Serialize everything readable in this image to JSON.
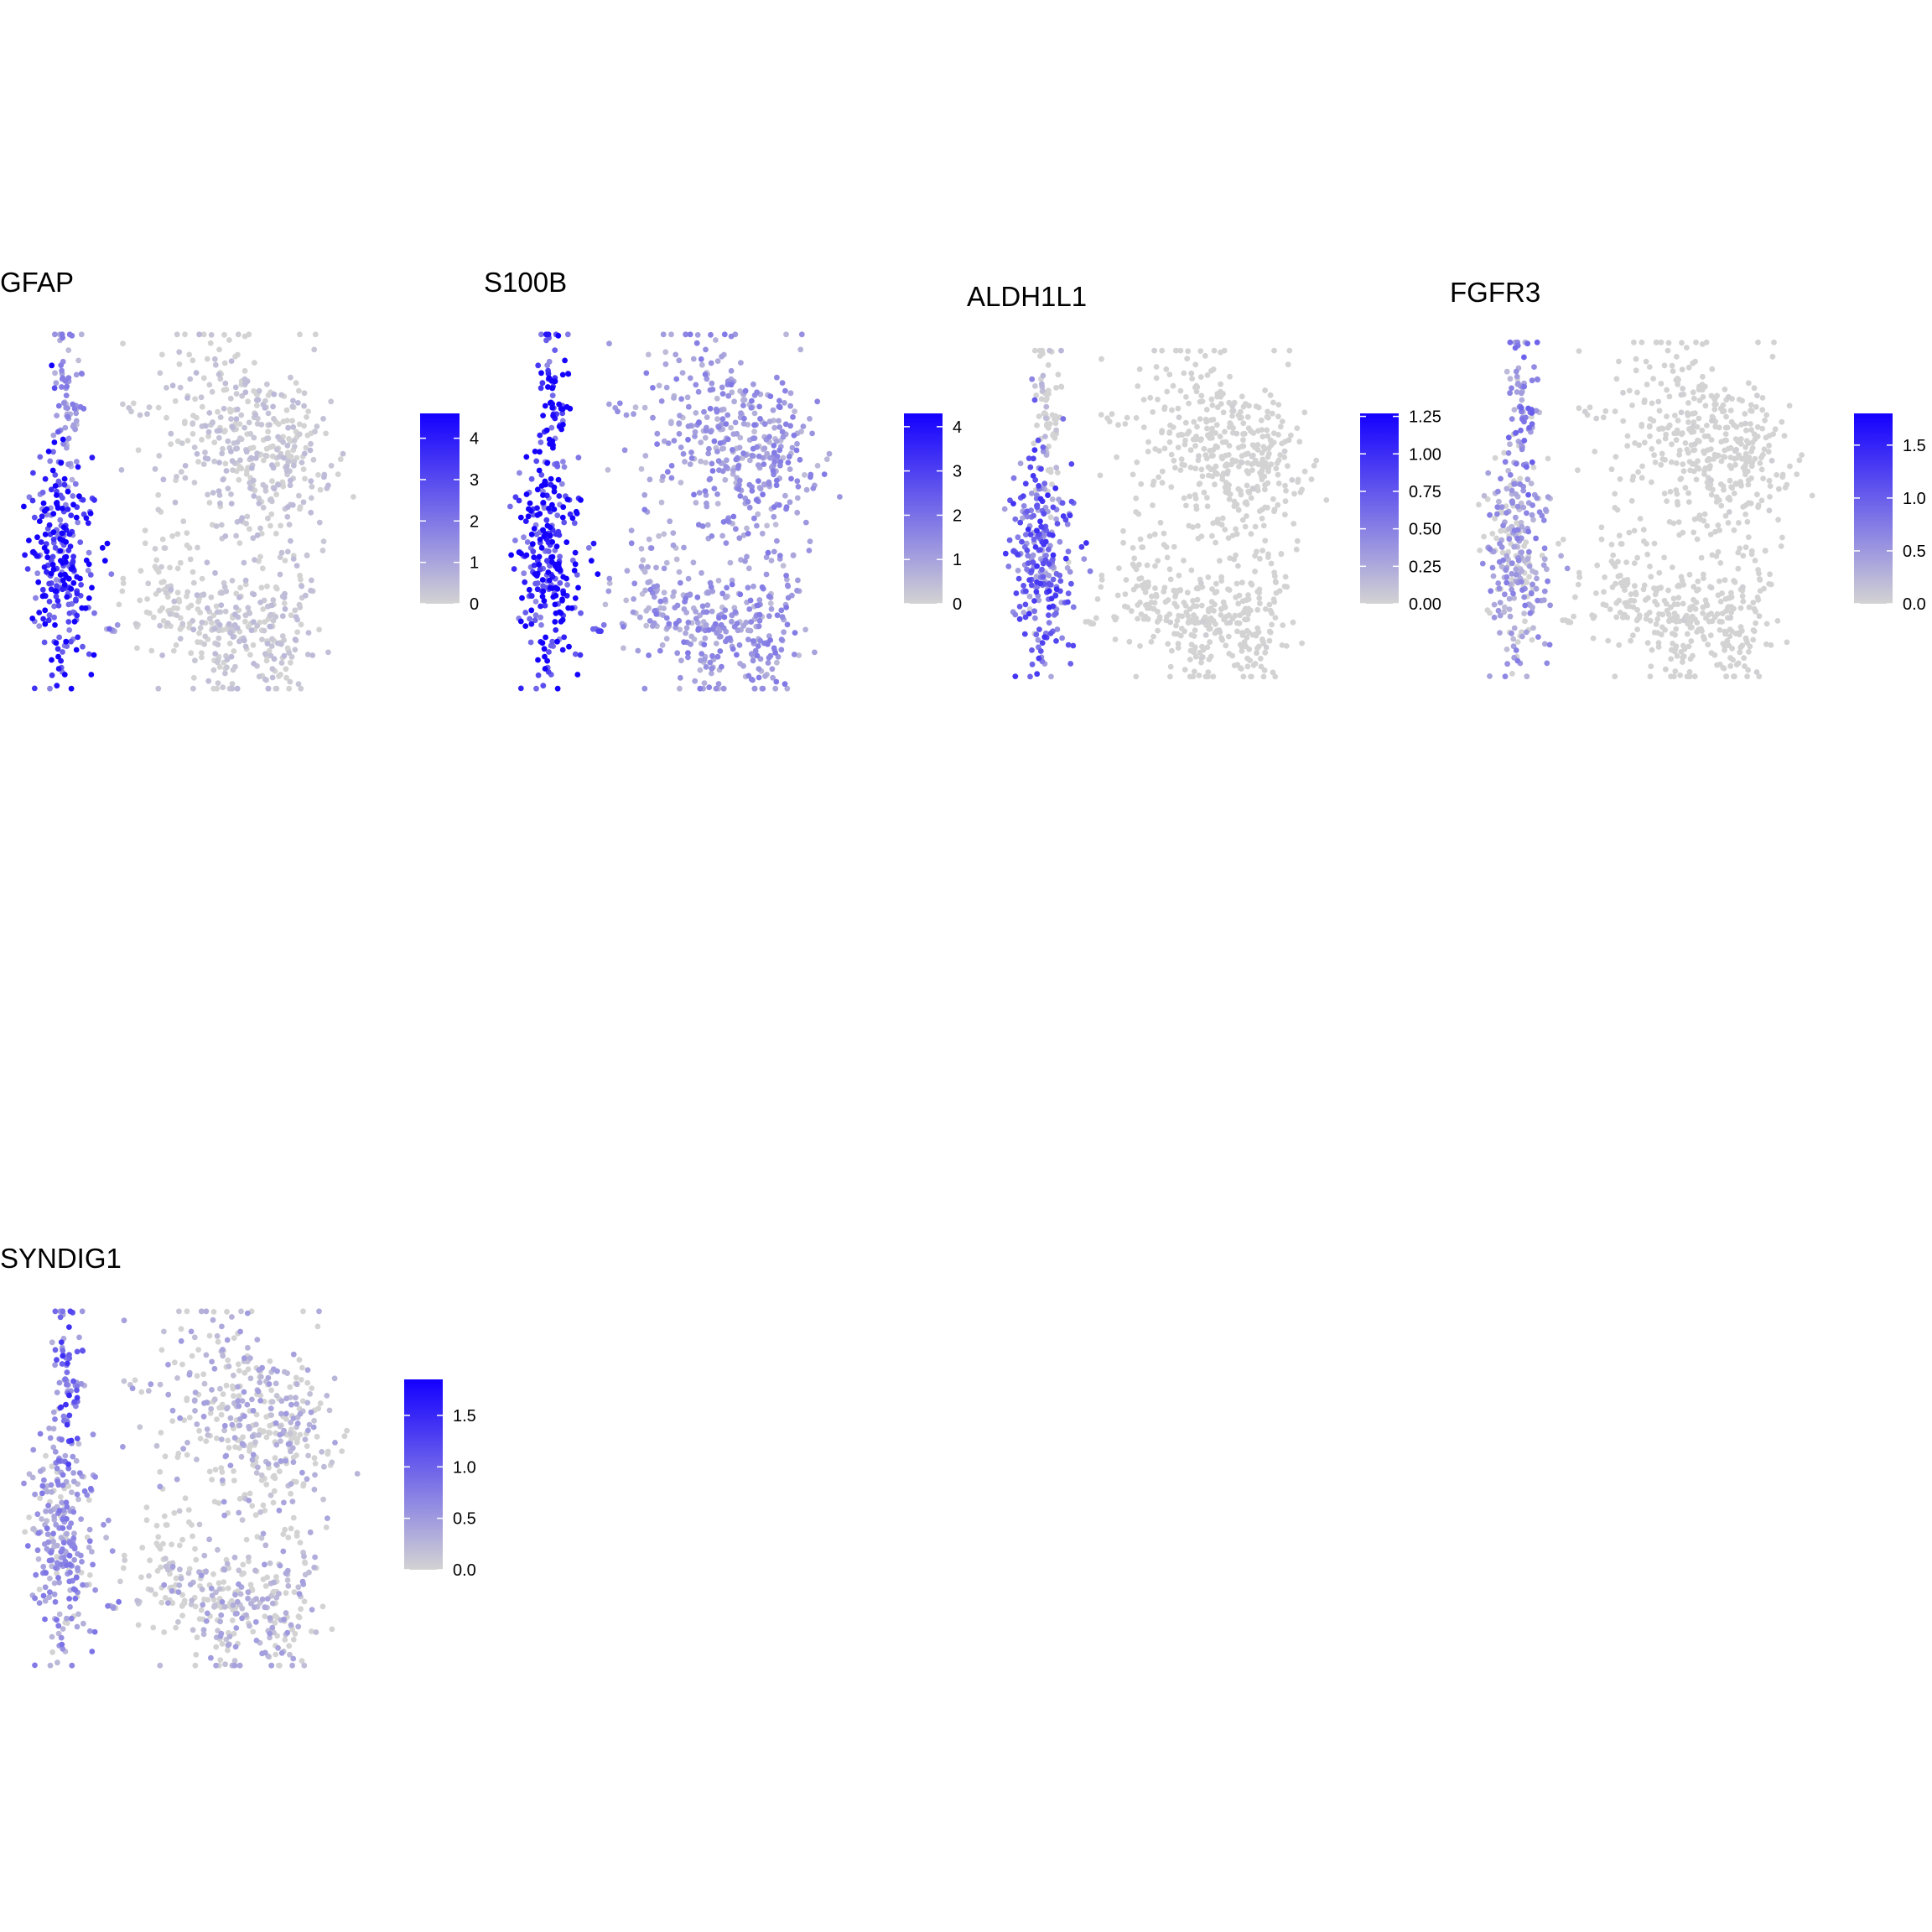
{
  "colors": {
    "background": "#ffffff",
    "low": "#d3d3d3",
    "high": "#1400ff",
    "text": "#000000"
  },
  "chart_data": [
    {
      "type": "scatter",
      "title": "GFAP",
      "color_scale": {
        "min": 0,
        "max": 4.6,
        "ticks": [
          "0",
          "1",
          "2",
          "3",
          "4"
        ],
        "tick_values": [
          0,
          1,
          2,
          3,
          4
        ]
      },
      "expression": {
        "left_lower": 3.3,
        "left_upper": 1.2,
        "island": 1.5,
        "main": 0.35,
        "lower_left_group": 0.15
      },
      "xlabel": "",
      "ylabel": "",
      "legend": "right",
      "grid": false
    },
    {
      "type": "scatter",
      "title": "S100B",
      "color_scale": {
        "min": 0,
        "max": 4.3,
        "ticks": [
          "0",
          "1",
          "2",
          "3",
          "4"
        ],
        "tick_values": [
          0,
          1,
          2,
          3,
          4
        ]
      },
      "expression": {
        "left_lower": 3.6,
        "left_upper": 3.4,
        "island": 2.2,
        "main": 1.1,
        "lower_left_group": 1.0
      },
      "xlabel": "",
      "ylabel": "",
      "legend": "right",
      "grid": false
    },
    {
      "type": "scatter",
      "title": "ALDH1L1",
      "color_scale": {
        "min": 0,
        "max": 1.27,
        "ticks": [
          "0.00",
          "0.25",
          "0.50",
          "0.75",
          "1.00",
          "1.25"
        ],
        "tick_values": [
          0,
          0.25,
          0.5,
          0.75,
          1.0,
          1.25
        ]
      },
      "expression": {
        "left_lower": 0.6,
        "left_upper": 0.15,
        "island": 0.0,
        "main": 0.02,
        "lower_left_group": 0.0
      },
      "xlabel": "",
      "ylabel": "",
      "legend": "right",
      "grid": false
    },
    {
      "type": "scatter",
      "title": "FGFR3",
      "color_scale": {
        "min": 0,
        "max": 1.8,
        "ticks": [
          "0.0",
          "0.5",
          "1.0",
          "1.5"
        ],
        "tick_values": [
          0,
          0.5,
          1.0,
          1.5
        ]
      },
      "expression": {
        "left_lower": 0.45,
        "left_upper": 0.6,
        "island": 0.0,
        "main": 0.03,
        "lower_left_group": 0.0
      },
      "xlabel": "",
      "ylabel": "",
      "legend": "right",
      "grid": false
    },
    {
      "type": "scatter",
      "title": "SYNDIG1",
      "color_scale": {
        "min": 0,
        "max": 1.85,
        "ticks": [
          "0.0",
          "0.5",
          "1.0",
          "1.5"
        ],
        "tick_values": [
          0,
          0.5,
          1.0,
          1.5
        ]
      },
      "expression": {
        "left_lower": 0.5,
        "left_upper": 0.9,
        "island": 0.5,
        "main": 0.3,
        "lower_left_group": 0.15
      },
      "xlabel": "",
      "ylabel": "",
      "legend": "right",
      "grid": false
    }
  ]
}
